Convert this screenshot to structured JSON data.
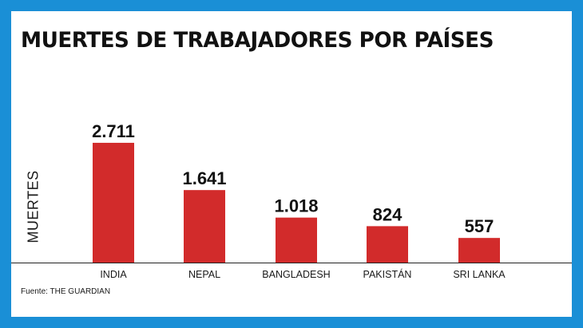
{
  "colors": {
    "background": "#1a8fd6",
    "card": "#ffffff",
    "bar": "#d22b2b",
    "text": "#111111"
  },
  "source": "Fuente: THE GUARDIAN",
  "chart_data": {
    "type": "bar",
    "title": "MUERTES DE TRABAJADORES POR PAÍSES",
    "xlabel": "",
    "ylabel": "MUERTES",
    "categories": [
      "INDIA",
      "NEPAL",
      "BANGLADESH",
      "PAKISTÁN",
      "SRI LANKA"
    ],
    "values": [
      2711,
      1641,
      1018,
      824,
      557
    ],
    "value_labels": [
      "2.711",
      "1.641",
      "1.018",
      "824",
      "557"
    ],
    "ylim": [
      0,
      3000
    ],
    "grid": false,
    "legend": "none"
  }
}
